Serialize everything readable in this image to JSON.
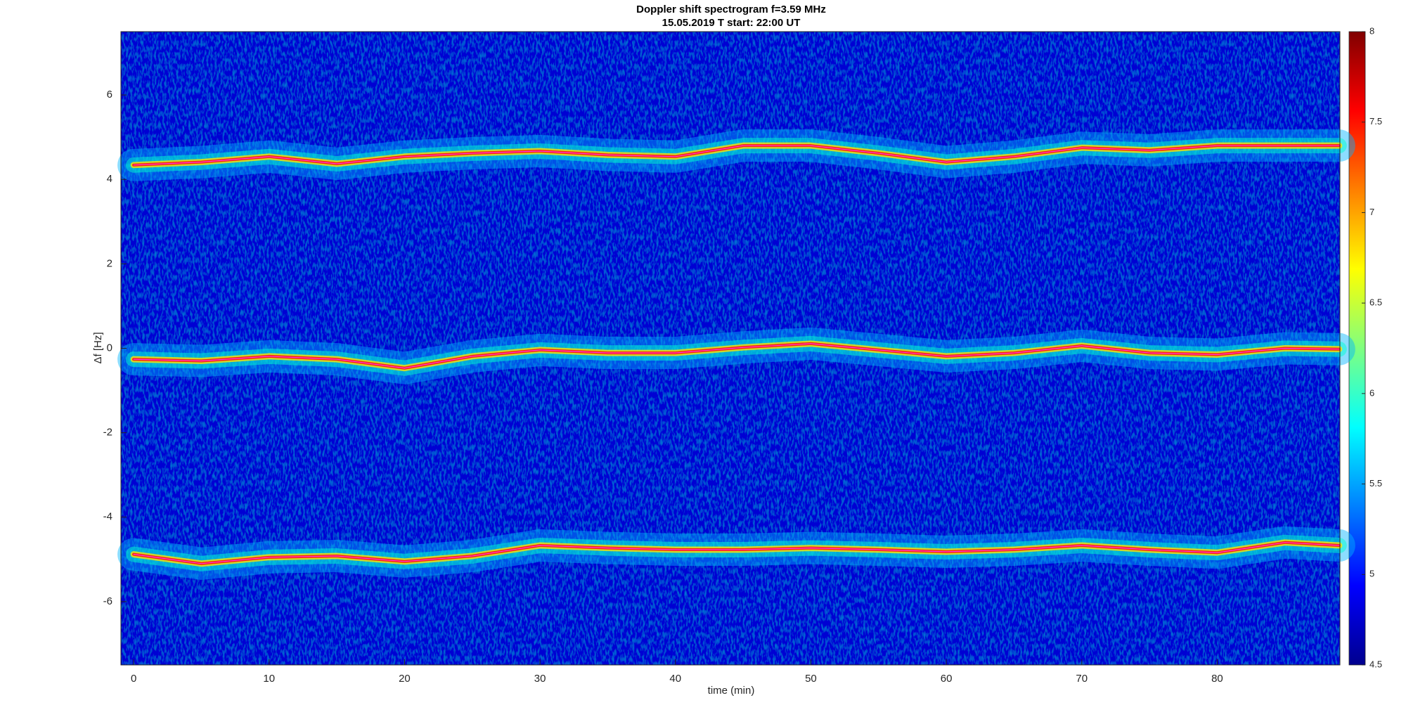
{
  "chart_data": {
    "type": "spectrogram",
    "title": "Doppler shift spectrogram f=3.59 MHz",
    "subtitle": "15.05.2019    T start: 22:00 UT",
    "x_label": "time (min)",
    "y_label": "Δf [Hz]",
    "xlim": [
      -0.94,
      89.06
    ],
    "xticks": [
      0,
      10,
      20,
      30,
      40,
      50,
      60,
      70,
      80
    ],
    "ylim": [
      -7.5,
      7.5
    ],
    "yticks": [
      -6,
      -4,
      -2,
      0,
      2,
      4,
      6
    ],
    "x": [
      0,
      5,
      10,
      15,
      20,
      25,
      30,
      35,
      40,
      45,
      50,
      55,
      60,
      65,
      70,
      75,
      80,
      85,
      89
    ],
    "series": [
      {
        "color": "#ff2000",
        "values": [
          4.34,
          4.41,
          4.54,
          4.37,
          4.54,
          4.62,
          4.67,
          4.58,
          4.54,
          4.8,
          4.8,
          4.62,
          4.41,
          4.54,
          4.75,
          4.69,
          4.8,
          4.8,
          4.8
        ]
      },
      {
        "color": "#ff2000",
        "values": [
          -0.26,
          -0.3,
          -0.19,
          -0.26,
          -0.47,
          -0.19,
          -0.04,
          -0.11,
          -0.11,
          0.02,
          0.11,
          -0.04,
          -0.19,
          -0.11,
          0.06,
          -0.11,
          -0.15,
          0,
          -0.02
        ]
      },
      {
        "color": "#ff2000",
        "values": [
          -4.88,
          -5.1,
          -4.95,
          -4.92,
          -5.05,
          -4.92,
          -4.67,
          -4.73,
          -4.77,
          -4.77,
          -4.73,
          -4.77,
          -4.82,
          -4.77,
          -4.67,
          -4.77,
          -4.84,
          -4.6,
          -4.67
        ]
      }
    ],
    "colormap": "jet",
    "clim": [
      4.5,
      8
    ],
    "cticks": [
      4.5,
      5,
      5.5,
      6,
      6.5,
      7,
      7.5,
      8
    ]
  }
}
